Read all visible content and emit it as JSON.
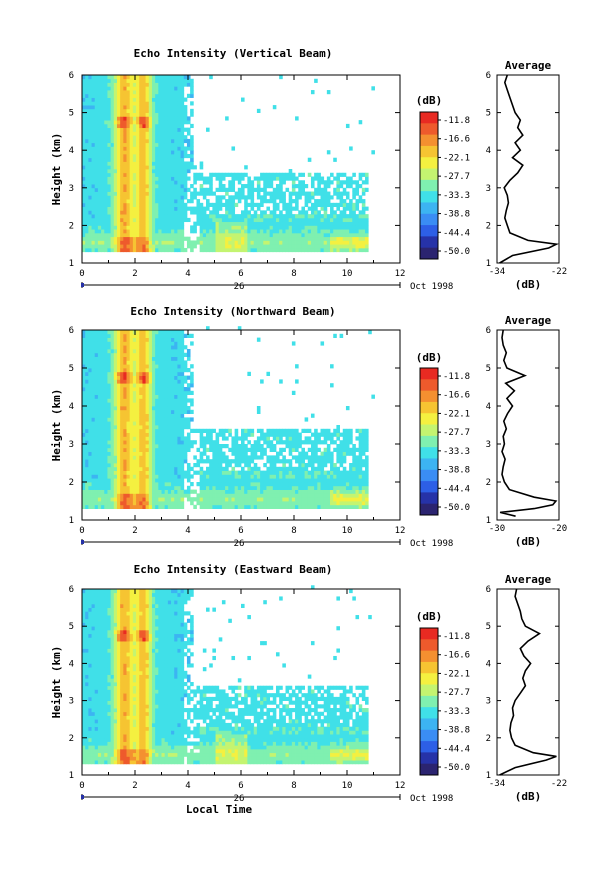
{
  "colors": {
    "palette": [
      "#2b2470",
      "#2632a8",
      "#2d5fe6",
      "#3a8df4",
      "#3cb4f2",
      "#40e0e8",
      "#7ff0b0",
      "#c4f470",
      "#f4f040",
      "#f6c432",
      "#f49030",
      "#ee5a2c",
      "#e82a22"
    ]
  },
  "chart_data": [
    {
      "type": "heatmap",
      "title": "Echo Intensity (Vertical Beam)",
      "xlabel": "",
      "ylabel": "Height (km)",
      "x_ticks": [
        "0",
        "2",
        "4",
        "6",
        "8",
        "10",
        "12"
      ],
      "y_ticks": [
        "1",
        "2",
        "3",
        "4",
        "5",
        "6"
      ],
      "xlim": [
        0,
        12
      ],
      "ylim": [
        1,
        6
      ],
      "date_label": "26",
      "date_right": "Oct 1998",
      "colorbar": {
        "unit": "(dB)",
        "ticks": [
          "-11.8",
          "-16.6",
          "-22.1",
          "-27.7",
          "-33.3",
          "-38.8",
          "-44.4",
          "-50.0"
        ]
      },
      "profile": {
        "title": "Average",
        "xlabel": "(dB)",
        "x_ticks": [
          "-34",
          "-22"
        ],
        "xlim": [
          -34,
          -22
        ],
        "ylim": [
          1,
          6
        ],
        "y_ticks": [
          "1",
          "2",
          "3",
          "4",
          "5",
          "6"
        ],
        "height": [
          1.0,
          1.2,
          1.4,
          1.5,
          1.6,
          1.8,
          2.0,
          2.2,
          2.4,
          2.6,
          2.8,
          3.0,
          3.2,
          3.4,
          3.6,
          3.8,
          4.0,
          4.2,
          4.4,
          4.6,
          4.8,
          5.0,
          5.2,
          5.4,
          5.6,
          5.8,
          6.0
        ],
        "values": [
          -33.5,
          -31,
          -24,
          -22.5,
          -28,
          -31.5,
          -32,
          -32.5,
          -32.2,
          -31.8,
          -32,
          -32.6,
          -31.5,
          -30,
          -29,
          -31,
          -29.5,
          -30.5,
          -29,
          -30,
          -29.5,
          -30.5,
          -31,
          -31.5,
          -32,
          -32.5,
          -32
        ]
      },
      "field": {
        "base": -36,
        "cells": []
      }
    },
    {
      "type": "heatmap",
      "title": "Echo Intensity (Northward Beam)",
      "xlabel": "",
      "ylabel": "Height (km)",
      "x_ticks": [
        "0",
        "2",
        "4",
        "6",
        "8",
        "10",
        "12"
      ],
      "y_ticks": [
        "1",
        "2",
        "3",
        "4",
        "5",
        "6"
      ],
      "xlim": [
        0,
        12
      ],
      "ylim": [
        1,
        6
      ],
      "date_label": "26",
      "date_right": "Oct 1998",
      "colorbar": {
        "unit": "(dB)",
        "ticks": [
          "-11.8",
          "-16.6",
          "-22.1",
          "-27.7",
          "-33.3",
          "-38.8",
          "-44.4",
          "-50.0"
        ]
      },
      "profile": {
        "title": "Average",
        "xlabel": "(dB)",
        "x_ticks": [
          "-30",
          "-20"
        ],
        "xlim": [
          -30,
          -20
        ],
        "ylim": [
          1,
          6
        ],
        "y_ticks": [
          "1",
          "2",
          "3",
          "4",
          "5",
          "6"
        ],
        "height": [
          1.1,
          1.2,
          1.3,
          1.4,
          1.5,
          1.6,
          1.8,
          2.0,
          2.2,
          2.4,
          2.6,
          2.8,
          3.0,
          3.2,
          3.4,
          3.6,
          3.8,
          4.0,
          4.2,
          4.4,
          4.6,
          4.8,
          5.0,
          5.2,
          5.4,
          5.6,
          5.8,
          6.0
        ],
        "values": [
          -27,
          -29.5,
          -24,
          -21,
          -20.5,
          -24,
          -28,
          -28.8,
          -29.2,
          -29,
          -28.7,
          -29.2,
          -28.8,
          -29,
          -28.5,
          -28.9,
          -28.3,
          -27.5,
          -28.4,
          -27.2,
          -28.6,
          -25.5,
          -28.4,
          -28.9,
          -28.5,
          -29,
          -29.2,
          -29
        ]
      },
      "field": {
        "base": -35,
        "cells": []
      }
    },
    {
      "type": "heatmap",
      "title": "Echo Intensity (Eastward Beam)",
      "xlabel": "Local Time",
      "ylabel": "Height (km)",
      "x_ticks": [
        "0",
        "2",
        "4",
        "6",
        "8",
        "10",
        "12"
      ],
      "y_ticks": [
        "1",
        "2",
        "3",
        "4",
        "5",
        "6"
      ],
      "xlim": [
        0,
        12
      ],
      "ylim": [
        1,
        6
      ],
      "date_label": "26",
      "date_right": "Oct 1998",
      "colorbar": {
        "unit": "(dB)",
        "ticks": [
          "-11.8",
          "-16.6",
          "-22.1",
          "-27.7",
          "-33.3",
          "-38.8",
          "-44.4",
          "-50.0"
        ]
      },
      "profile": {
        "title": "Average",
        "xlabel": "(dB)",
        "x_ticks": [
          "-34",
          "-22"
        ],
        "xlim": [
          -34,
          -22
        ],
        "ylim": [
          1,
          6
        ],
        "y_ticks": [
          "1",
          "2",
          "3",
          "4",
          "5",
          "6"
        ],
        "height": [
          1.0,
          1.2,
          1.4,
          1.5,
          1.6,
          1.8,
          2.0,
          2.2,
          2.4,
          2.6,
          2.8,
          3.0,
          3.2,
          3.4,
          3.6,
          3.8,
          4.0,
          4.2,
          4.4,
          4.6,
          4.8,
          5.0,
          5.2,
          5.4,
          5.6,
          5.8,
          6.0
        ],
        "values": [
          -33.5,
          -30.5,
          -24.5,
          -22.5,
          -27,
          -30.5,
          -31.2,
          -31.5,
          -31.3,
          -30.8,
          -31,
          -30.5,
          -29.5,
          -28.5,
          -29,
          -28.5,
          -27.5,
          -28.8,
          -29.5,
          -28,
          -25.8,
          -28.5,
          -29.2,
          -29.5,
          -30,
          -30.5,
          -30.2
        ]
      },
      "field": {
        "base": -35,
        "cells": []
      }
    }
  ]
}
